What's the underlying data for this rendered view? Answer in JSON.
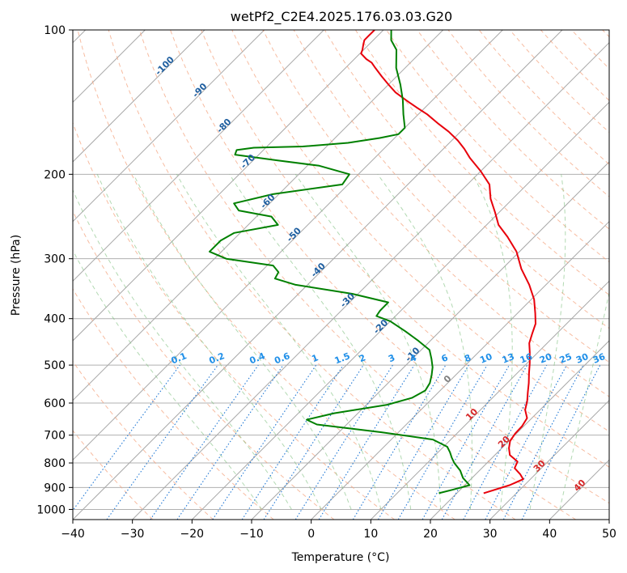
{
  "chart_data": {
    "type": "skew-t",
    "title": "wetPf2_C2E4.2025.176.03.03.G20",
    "xlabel": "Temperature (°C)",
    "ylabel": "Pressure (hPa)",
    "xlim": [
      -40,
      50
    ],
    "ylim": [
      1050,
      100
    ],
    "y_scale": "log",
    "x_ticks": [
      -40,
      -30,
      -20,
      -10,
      0,
      10,
      20,
      30,
      40,
      50
    ],
    "x_tick_labels": [
      "−40",
      "−30",
      "−20",
      "−10",
      "0",
      "10",
      "20",
      "30",
      "40",
      "50"
    ],
    "y_ticks": [
      100,
      200,
      300,
      400,
      500,
      600,
      700,
      800,
      900,
      1000
    ],
    "y_tick_labels": [
      "100",
      "200",
      "300",
      "400",
      "500",
      "600",
      "700",
      "800",
      "900",
      "1000"
    ],
    "grid": true,
    "isotherm_labels": [
      {
        "text": "-100",
        "t": -100,
        "p": 120
      },
      {
        "text": "-90",
        "t": -90,
        "p": 135
      },
      {
        "text": "-80",
        "t": -80,
        "p": 160
      },
      {
        "text": "-70",
        "t": -70,
        "p": 190
      },
      {
        "text": "-60",
        "t": -60,
        "p": 230
      },
      {
        "text": "-50",
        "t": -50,
        "p": 270
      },
      {
        "text": "-40",
        "t": -40,
        "p": 320
      },
      {
        "text": "-30",
        "t": -30,
        "p": 370
      },
      {
        "text": "-20",
        "t": -20,
        "p": 420
      },
      {
        "text": "-10",
        "t": -10,
        "p": 480
      },
      {
        "text": "0",
        "t": 0,
        "p": 540
      },
      {
        "text": "10",
        "t": 10,
        "p": 640
      },
      {
        "text": "20",
        "t": 20,
        "p": 730
      },
      {
        "text": "30",
        "t": 30,
        "p": 820
      },
      {
        "text": "40",
        "t": 40,
        "p": 900
      }
    ],
    "mixing_ratio_labels": [
      "0.1",
      "0.2",
      "0.4",
      "0.6",
      "1",
      "1.5",
      "2",
      "3",
      "4",
      "6",
      "8",
      "10",
      "13",
      "16",
      "20",
      "25",
      "30",
      "36"
    ],
    "series": [
      {
        "name": "Temperature",
        "color": "#e8000b",
        "points": [
          [
            24.5,
            925
          ],
          [
            27.5,
            890
          ],
          [
            28.8,
            865
          ],
          [
            27.5,
            845
          ],
          [
            25.5,
            820
          ],
          [
            24.9,
            795
          ],
          [
            22.5,
            770
          ],
          [
            21.2,
            745
          ],
          [
            20.2,
            720
          ],
          [
            19.8,
            695
          ],
          [
            19.7,
            670
          ],
          [
            19.2,
            645
          ],
          [
            17.5,
            620
          ],
          [
            16.4,
            595
          ],
          [
            15.0,
            570
          ],
          [
            13.6,
            545
          ],
          [
            12.0,
            520
          ],
          [
            10.4,
            495
          ],
          [
            8.6,
            470
          ],
          [
            7.0,
            450
          ],
          [
            5.9,
            430
          ],
          [
            4.8,
            410
          ],
          [
            3.0,
            390
          ],
          [
            0.5,
            365
          ],
          [
            -2.8,
            340
          ],
          [
            -6.8,
            315
          ],
          [
            -10.5,
            290
          ],
          [
            -14.5,
            270
          ],
          [
            -18.0,
            255
          ],
          [
            -20.7,
            240
          ],
          [
            -23.7,
            225
          ],
          [
            -26.3,
            210
          ],
          [
            -30.0,
            197
          ],
          [
            -34.0,
            185
          ],
          [
            -36.5,
            177
          ],
          [
            -39.0,
            170
          ],
          [
            -42.0,
            163
          ],
          [
            -45.0,
            157
          ],
          [
            -48.5,
            150
          ],
          [
            -51.5,
            145
          ],
          [
            -54.5,
            140
          ],
          [
            -57.5,
            135
          ],
          [
            -60.0,
            130
          ],
          [
            -62.5,
            125
          ],
          [
            -65.0,
            120
          ],
          [
            -66.5,
            117
          ],
          [
            -68.0,
            115
          ],
          [
            -69.8,
            112
          ],
          [
            -70.2,
            110
          ],
          [
            -71.0,
            107
          ],
          [
            -71.5,
            105
          ],
          [
            -71.5,
            103
          ],
          [
            -71.5,
            100
          ]
        ]
      },
      {
        "name": "Dewpoint",
        "color": "#008000",
        "points": [
          [
            17.0,
            925
          ],
          [
            18.7,
            910
          ],
          [
            20.8,
            890
          ],
          [
            18.5,
            860
          ],
          [
            16.8,
            830
          ],
          [
            14.5,
            800
          ],
          [
            13.2,
            780
          ],
          [
            12.0,
            760
          ],
          [
            10.6,
            740
          ],
          [
            7.0,
            715
          ],
          [
            -3.0,
            690
          ],
          [
            -15.0,
            665
          ],
          [
            -17.5,
            650
          ],
          [
            -14.0,
            630
          ],
          [
            -6.5,
            605
          ],
          [
            -3.5,
            585
          ],
          [
            -2.5,
            565
          ],
          [
            -3.0,
            545
          ],
          [
            -4.0,
            525
          ],
          [
            -5.2,
            505
          ],
          [
            -6.8,
            485
          ],
          [
            -8.6,
            465
          ],
          [
            -12.0,
            445
          ],
          [
            -15.8,
            425
          ],
          [
            -20.0,
            405
          ],
          [
            -23.2,
            395
          ],
          [
            -23.5,
            385
          ],
          [
            -23.5,
            370
          ],
          [
            -31.0,
            355
          ],
          [
            -42.0,
            340
          ],
          [
            -46.5,
            330
          ],
          [
            -47.0,
            320
          ],
          [
            -49.0,
            310
          ],
          [
            -58.0,
            300
          ],
          [
            -62.0,
            290
          ],
          [
            -62.0,
            275
          ],
          [
            -61.0,
            265
          ],
          [
            -55.0,
            255
          ],
          [
            -57.5,
            245
          ],
          [
            -64.0,
            238
          ],
          [
            -66.0,
            230
          ],
          [
            -61.0,
            220
          ],
          [
            -51.0,
            210
          ],
          [
            -51.5,
            200
          ],
          [
            -58.0,
            192
          ],
          [
            -66.0,
            187
          ],
          [
            -74.0,
            182
          ],
          [
            -74.5,
            178
          ],
          [
            -72.0,
            176
          ],
          [
            -64.0,
            175
          ],
          [
            -57.0,
            172
          ],
          [
            -52.5,
            168
          ],
          [
            -50.0,
            165
          ],
          [
            -50.0,
            160
          ],
          [
            -52.5,
            150
          ],
          [
            -55.0,
            140
          ],
          [
            -58.0,
            130
          ],
          [
            -61.5,
            120
          ],
          [
            -64.5,
            110
          ],
          [
            -67.0,
            105
          ],
          [
            -68.7,
            100
          ]
        ]
      }
    ]
  }
}
